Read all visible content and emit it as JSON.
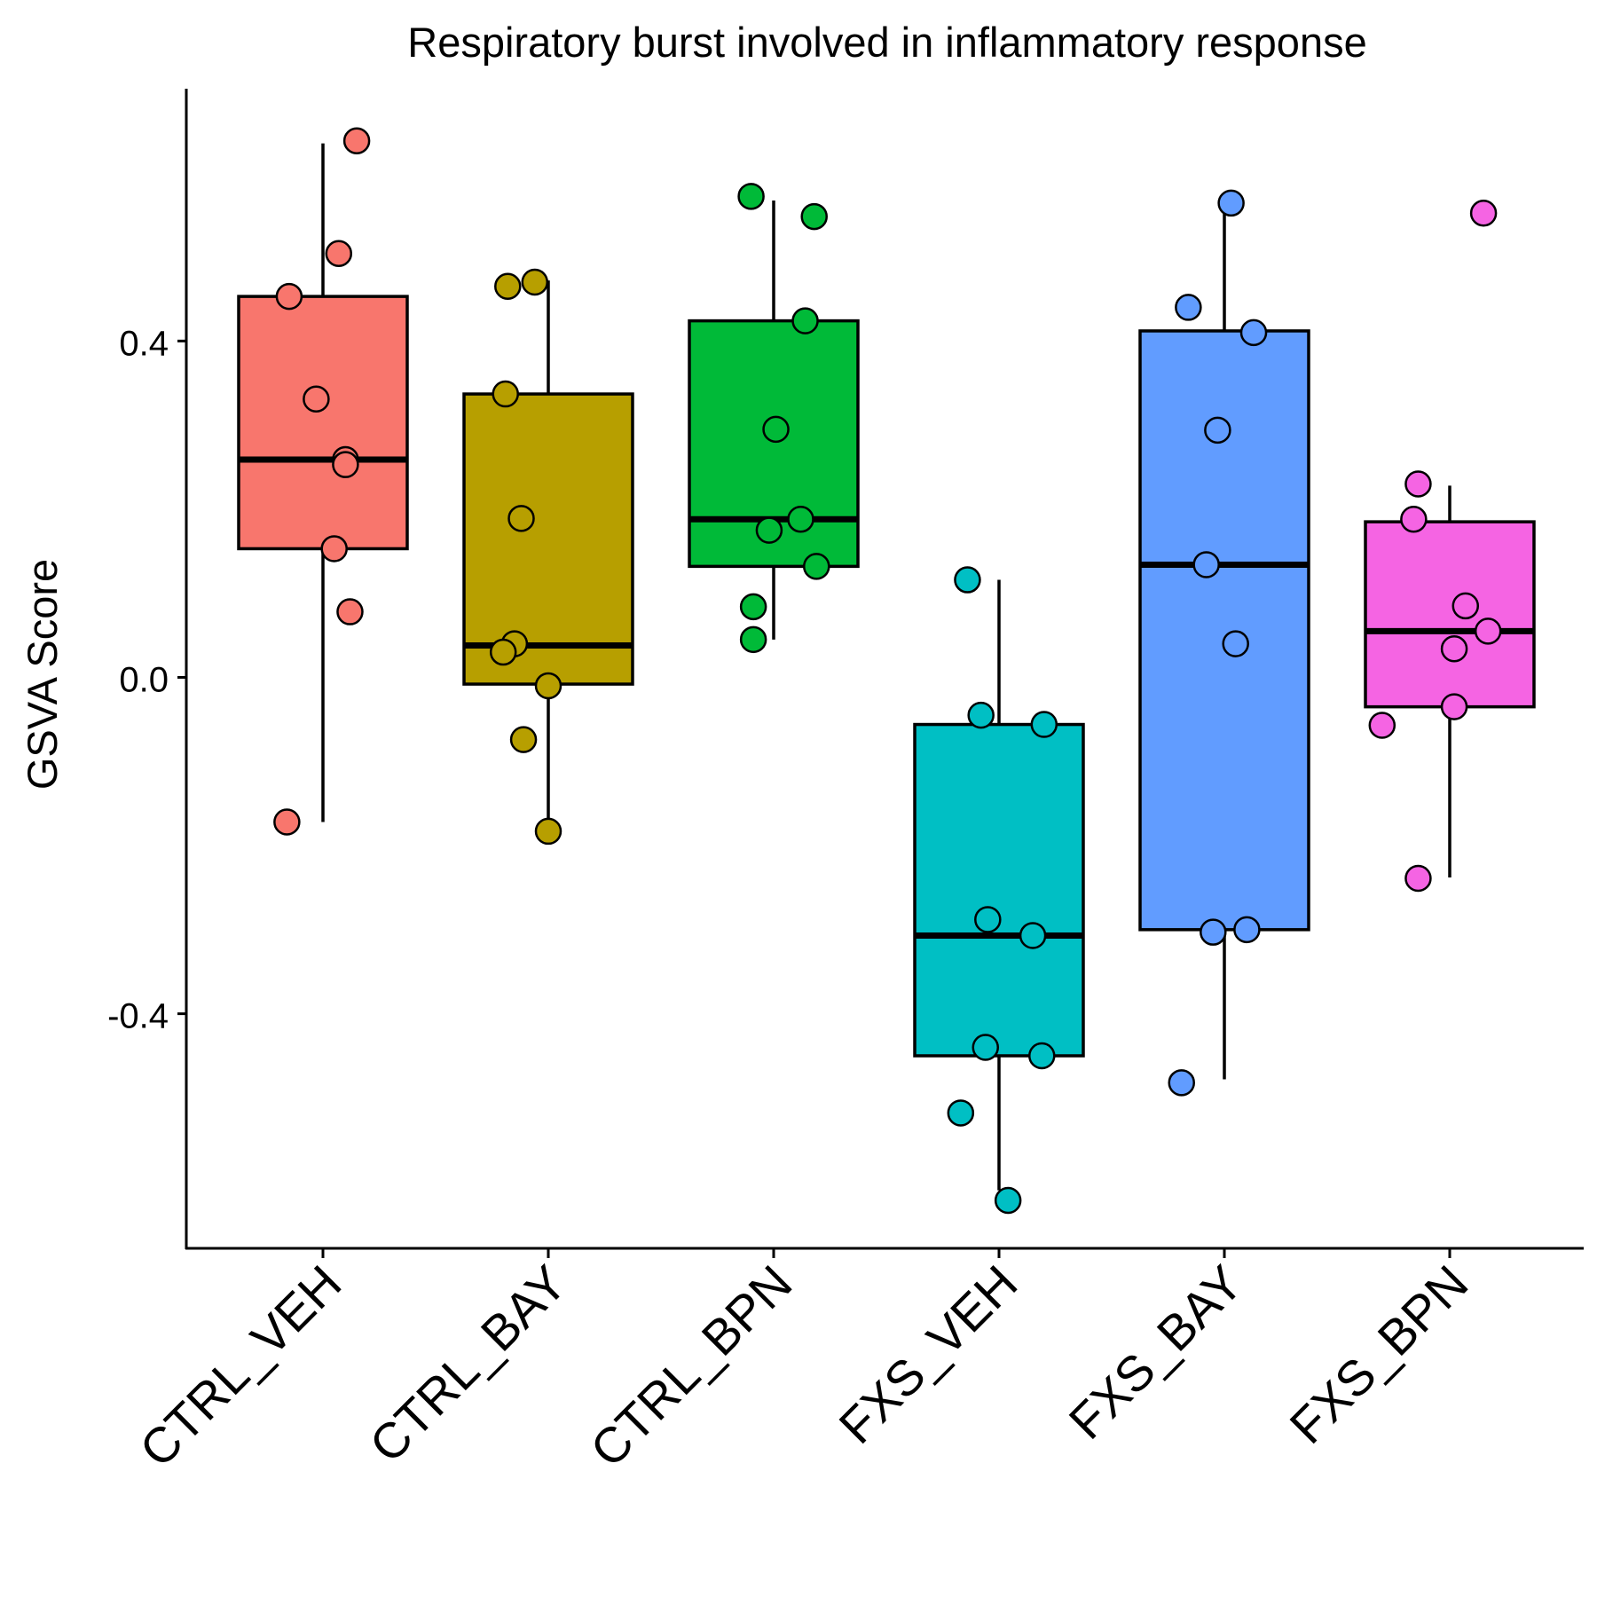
{
  "chart_data": {
    "type": "box",
    "title": "Respiratory burst involved in inflammatory response",
    "xlabel": "",
    "ylabel": "GSVA Score",
    "ylim": [
      -0.68,
      0.7
    ],
    "yticks": [
      {
        "value": 0.4,
        "label": "0.4"
      },
      {
        "value": 0.0,
        "label": "0.0"
      },
      {
        "value": -0.4,
        "label": "-0.4"
      }
    ],
    "categories": [
      "CTRL_VEH",
      "CTRL_BAY",
      "CTRL_BPN",
      "FXS_VEH",
      "FXS_BAY",
      "FXS_BPN"
    ],
    "colors": [
      "#F8766D",
      "#B79F00",
      "#00BA38",
      "#00BFC4",
      "#619CFF",
      "#F564E3"
    ],
    "grid": false,
    "legend": "none",
    "boxes": [
      {
        "whisker_low": -0.172,
        "q1": 0.153,
        "median": 0.259,
        "q3": 0.453,
        "whisker_high": 0.635
      },
      {
        "whisker_low": -0.18,
        "q1": -0.008,
        "median": 0.038,
        "q3": 0.337,
        "whisker_high": 0.472
      },
      {
        "whisker_low": 0.045,
        "q1": 0.132,
        "median": 0.188,
        "q3": 0.424,
        "whisker_high": 0.567
      },
      {
        "whisker_low": -0.61,
        "q1": -0.45,
        "median": -0.307,
        "q3": -0.056,
        "whisker_high": 0.116
      },
      {
        "whisker_low": -0.478,
        "q1": -0.3,
        "median": 0.134,
        "q3": 0.412,
        "whisker_high": 0.56
      },
      {
        "whisker_low": -0.238,
        "q1": -0.035,
        "median": 0.055,
        "q3": 0.185,
        "whisker_high": 0.228
      }
    ],
    "points": [
      [
        {
          "x": 0.15,
          "y": 0.638
        },
        {
          "x": 0.07,
          "y": 0.504
        },
        {
          "x": -0.15,
          "y": 0.453
        },
        {
          "x": -0.03,
          "y": 0.331
        },
        {
          "x": 0.1,
          "y": 0.259
        },
        {
          "x": 0.1,
          "y": 0.253
        },
        {
          "x": 0.05,
          "y": 0.153
        },
        {
          "x": 0.12,
          "y": 0.078
        },
        {
          "x": -0.16,
          "y": -0.172
        }
      ],
      [
        {
          "x": -0.18,
          "y": 0.465
        },
        {
          "x": -0.06,
          "y": 0.47
        },
        {
          "x": -0.19,
          "y": 0.337
        },
        {
          "x": -0.12,
          "y": 0.189
        },
        {
          "x": -0.15,
          "y": 0.04
        },
        {
          "x": -0.2,
          "y": 0.03
        },
        {
          "x": 0.0,
          "y": -0.01
        },
        {
          "x": -0.11,
          "y": -0.074
        },
        {
          "x": 0.0,
          "y": -0.183
        }
      ],
      [
        {
          "x": -0.1,
          "y": 0.572
        },
        {
          "x": 0.18,
          "y": 0.548
        },
        {
          "x": 0.14,
          "y": 0.424
        },
        {
          "x": 0.01,
          "y": 0.295
        },
        {
          "x": 0.12,
          "y": 0.188
        },
        {
          "x": -0.02,
          "y": 0.175
        },
        {
          "x": 0.19,
          "y": 0.132
        },
        {
          "x": -0.09,
          "y": 0.084
        },
        {
          "x": -0.09,
          "y": 0.045
        }
      ],
      [
        {
          "x": -0.14,
          "y": 0.116
        },
        {
          "x": -0.08,
          "y": -0.045
        },
        {
          "x": 0.2,
          "y": -0.056
        },
        {
          "x": -0.05,
          "y": -0.288
        },
        {
          "x": 0.15,
          "y": -0.307
        },
        {
          "x": -0.06,
          "y": -0.44
        },
        {
          "x": 0.19,
          "y": -0.45
        },
        {
          "x": -0.17,
          "y": -0.518
        },
        {
          "x": 0.04,
          "y": -0.622
        }
      ],
      [
        {
          "x": 0.03,
          "y": 0.564
        },
        {
          "x": -0.16,
          "y": 0.44
        },
        {
          "x": 0.13,
          "y": 0.41
        },
        {
          "x": -0.03,
          "y": 0.294
        },
        {
          "x": -0.08,
          "y": 0.134
        },
        {
          "x": 0.05,
          "y": 0.04
        },
        {
          "x": -0.05,
          "y": -0.303
        },
        {
          "x": 0.1,
          "y": -0.3
        },
        {
          "x": -0.19,
          "y": -0.482
        }
      ],
      [
        {
          "x": 0.15,
          "y": 0.552
        },
        {
          "x": -0.14,
          "y": 0.23
        },
        {
          "x": -0.16,
          "y": 0.188
        },
        {
          "x": 0.07,
          "y": 0.085
        },
        {
          "x": 0.17,
          "y": 0.055
        },
        {
          "x": 0.02,
          "y": 0.034
        },
        {
          "x": 0.02,
          "y": -0.035
        },
        {
          "x": -0.3,
          "y": -0.057
        },
        {
          "x": -0.14,
          "y": -0.239
        }
      ]
    ]
  }
}
